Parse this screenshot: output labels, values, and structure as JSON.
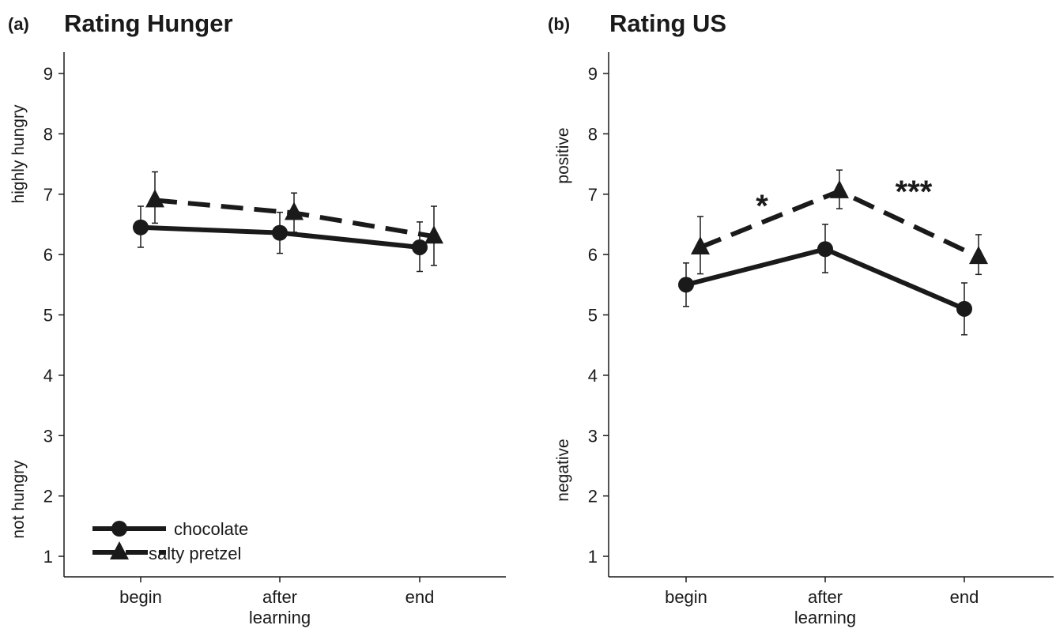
{
  "chart_data": [
    {
      "type": "line",
      "panel_label": "(a)",
      "title": "Rating Hunger",
      "categories": [
        "begin",
        "after\nlearning",
        "end"
      ],
      "ylim": [
        0.7,
        9.4
      ],
      "yticks": [
        1,
        2,
        3,
        4,
        5,
        6,
        7,
        8,
        9
      ],
      "y_anchor_high": "highly hungry",
      "y_anchor_low": "not hungry",
      "grid": false,
      "legend": {
        "placement": "bottom-left",
        "entries": [
          "chocolate",
          "salty pretzel"
        ]
      },
      "series": [
        {
          "name": "chocolate",
          "line": "solid",
          "marker": "circle",
          "values": [
            6.45,
            6.36,
            6.12
          ],
          "err_low": [
            6.12,
            6.02,
            5.72
          ],
          "err_high": [
            6.8,
            6.7,
            6.54
          ]
        },
        {
          "name": "salty pretzel",
          "line": "dashed",
          "marker": "triangle",
          "values": [
            6.9,
            6.69,
            6.3
          ],
          "err_low": [
            6.52,
            6.37,
            5.82
          ],
          "err_high": [
            7.37,
            7.02,
            6.8
          ]
        }
      ],
      "annotations": []
    },
    {
      "type": "line",
      "panel_label": "(b)",
      "title": "Rating US",
      "categories": [
        "begin",
        "after\nlearning",
        "end"
      ],
      "ylim": [
        0.7,
        9.4
      ],
      "yticks": [
        1,
        2,
        3,
        4,
        5,
        6,
        7,
        8,
        9
      ],
      "y_anchor_high": "positive",
      "y_anchor_low": "negative",
      "grid": false,
      "legend": null,
      "series": [
        {
          "name": "chocolate",
          "line": "solid",
          "marker": "circle",
          "values": [
            5.5,
            6.09,
            5.1
          ],
          "err_low": [
            5.14,
            5.7,
            4.67
          ],
          "err_high": [
            5.86,
            6.5,
            5.53
          ]
        },
        {
          "name": "salty pretzel",
          "line": "dashed",
          "marker": "triangle",
          "values": [
            6.12,
            7.05,
            5.96
          ],
          "err_low": [
            5.68,
            6.76,
            5.67
          ],
          "err_high": [
            6.63,
            7.4,
            6.33
          ]
        }
      ],
      "annotations": [
        {
          "text": "*",
          "between": [
            0,
            1
          ]
        },
        {
          "text": "***",
          "between": [
            1,
            2
          ]
        }
      ]
    }
  ]
}
